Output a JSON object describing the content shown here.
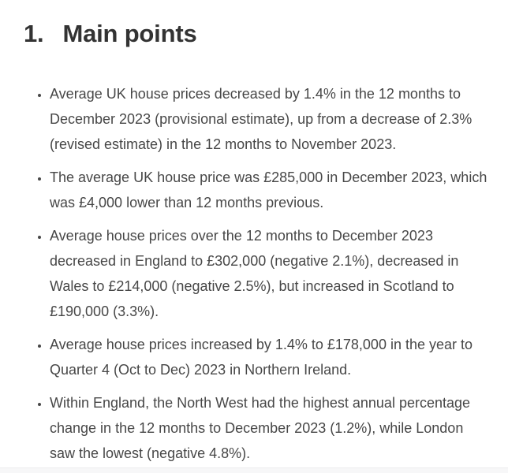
{
  "colors": {
    "background": "#ffffff",
    "heading_text": "#333333",
    "body_text": "#474747",
    "divider_band": "#f7f7f8",
    "divider_border": "#ececed"
  },
  "heading": {
    "number": "1.",
    "title": "Main points"
  },
  "bullets": [
    "Average UK house prices decreased by 1.4% in the 12 months to December 2023 (provisional estimate), up from a decrease of 2.3% (revised estimate) in the 12 months to November 2023.",
    "The average UK house price was £285,000 in December 2023, which was £4,000 lower than 12 months previous.",
    "Average house prices over the 12 months to December 2023 decreased in England to £302,000 (negative 2.1%), decreased in Wales to £214,000 (negative 2.5%), but increased in Scotland to £190,000 (3.3%).",
    "Average house prices increased by 1.4% to £178,000 in the year to Quarter 4 (Oct to Dec) 2023 in Northern Ireland.",
    "Within England, the North West had the highest annual percentage change in the 12 months to December 2023 (1.2%), while London saw the lowest (negative 4.8%)."
  ]
}
